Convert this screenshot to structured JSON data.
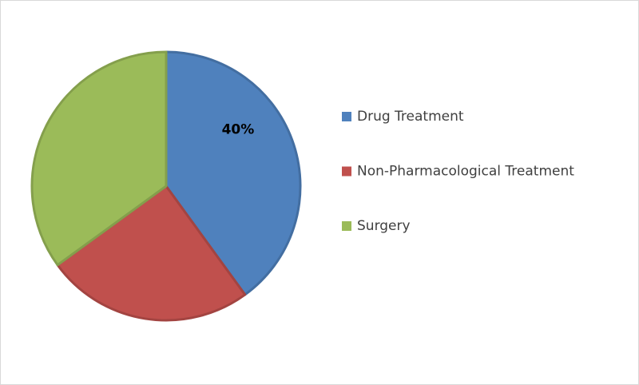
{
  "chart_data": {
    "type": "pie",
    "categories": [
      "Drug Treatment",
      "Non-Pharmacological Treatment",
      "Surgery"
    ],
    "values": [
      40,
      25,
      35
    ],
    "value_labels": [
      "40%",
      null,
      null
    ],
    "colors": [
      "#4f81bd",
      "#c0504d",
      "#9bbb59"
    ],
    "legend": "right"
  }
}
